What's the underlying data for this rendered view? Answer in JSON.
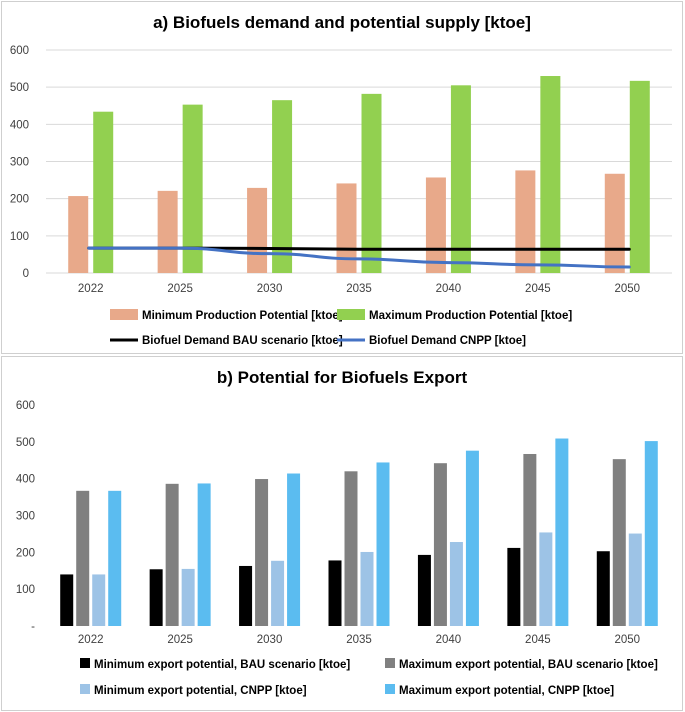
{
  "chart_data": [
    {
      "type": "bar",
      "title": "a) Biofuels demand and potential supply [ktoe]",
      "categories": [
        "2022",
        "2025",
        "2030",
        "2035",
        "2040",
        "2045",
        "2050"
      ],
      "ylim": [
        0,
        600
      ],
      "yticks": [
        "0",
        "100",
        "200",
        "300",
        "400",
        "500",
        "600"
      ],
      "grid": true,
      "series": [
        {
          "name": "Minimum Production Potential [ktoe]",
          "kind": "bar",
          "color": "#e8a98a",
          "values": [
            207,
            221,
            229,
            241,
            257,
            276,
            267
          ]
        },
        {
          "name": "Maximum Production Potential [ktoe]",
          "kind": "bar",
          "color": "#92d050",
          "values": [
            434,
            453,
            465,
            482,
            505,
            530,
            517
          ]
        },
        {
          "name": "Biofuel Demand BAU scenario [ktoe]",
          "kind": "line",
          "color": "#000000",
          "values": [
            67,
            67,
            66,
            64,
            64,
            64,
            64
          ]
        },
        {
          "name": "Biofuel Demand CNPP [ktoe]",
          "kind": "line",
          "color": "#4472c4",
          "values": [
            67,
            67,
            52,
            38,
            28,
            22,
            16
          ]
        }
      ],
      "legend": "bottom"
    },
    {
      "type": "bar",
      "title": "b) Potential for Biofuels Export",
      "categories": [
        "2022",
        "2025",
        "2030",
        "2035",
        "2040",
        "2045",
        "2050"
      ],
      "ylim": [
        0,
        600
      ],
      "yticks": [
        "-",
        "100",
        "200",
        "300",
        "400",
        "500",
        "600"
      ],
      "grid": false,
      "series": [
        {
          "name": "Minimum export potential, BAU scenario [ktoe]",
          "kind": "bar",
          "color": "#000000",
          "values": [
            140,
            154,
            163,
            178,
            193,
            212,
            203
          ]
        },
        {
          "name": "Maximum export potential, BAU scenario [ktoe]",
          "kind": "bar",
          "color": "#808080",
          "values": [
            367,
            386,
            399,
            420,
            442,
            467,
            453
          ]
        },
        {
          "name": "Minimum export potential, CNPP [ktoe]",
          "kind": "bar",
          "color": "#9dc3e6",
          "values": [
            140,
            155,
            177,
            201,
            228,
            254,
            251
          ]
        },
        {
          "name": "Maximum export potential, CNPP [ktoe]",
          "kind": "bar",
          "color": "#5bbcf0",
          "values": [
            367,
            387,
            414,
            444,
            476,
            509,
            502
          ]
        }
      ],
      "legend": "bottom"
    }
  ]
}
